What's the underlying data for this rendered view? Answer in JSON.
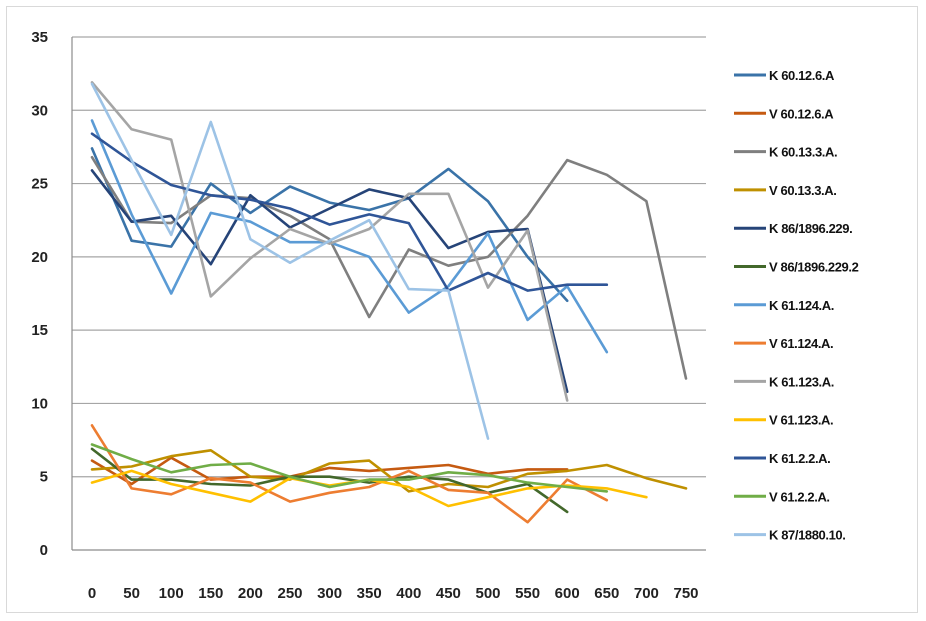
{
  "chart_data": {
    "type": "line",
    "title": "",
    "xlabel": "",
    "ylabel": "",
    "x": [
      0,
      50,
      100,
      150,
      200,
      250,
      300,
      350,
      400,
      450,
      500,
      550,
      600,
      650,
      700,
      750
    ],
    "x_ticks": [
      "0",
      "50",
      "100",
      "150",
      "200",
      "250",
      "300",
      "350",
      "400",
      "450",
      "500",
      "550",
      "600",
      "650",
      "700",
      "750"
    ],
    "ylim": [
      0,
      35
    ],
    "y_ticks": [
      "0",
      "5",
      "10",
      "15",
      "20",
      "25",
      "30",
      "35"
    ],
    "grid": true,
    "legend": "right",
    "series": [
      {
        "name": "K 60.12.6.A",
        "color": "#3a73a8",
        "values": [
          27.4,
          21.1,
          20.7,
          25.0,
          23.0,
          24.8,
          23.7,
          23.2,
          24.0,
          26.0,
          23.8,
          20.0,
          17.0,
          null,
          null,
          null
        ]
      },
      {
        "name": "V 60.12.6.A",
        "color": "#c55a11",
        "values": [
          6.1,
          4.5,
          6.3,
          4.8,
          5.0,
          5.0,
          5.6,
          5.4,
          5.6,
          5.8,
          5.2,
          5.5,
          5.5,
          null,
          null,
          null
        ]
      },
      {
        "name": "K 60.13.3.A.",
        "color": "#7f7f7f",
        "values": [
          26.8,
          22.4,
          22.3,
          24.2,
          24.0,
          22.8,
          21.2,
          15.9,
          20.5,
          19.4,
          20.0,
          22.8,
          26.6,
          25.6,
          23.8,
          11.7
        ]
      },
      {
        "name": "V 60.13.3.A.",
        "color": "#bf9000",
        "values": [
          5.5,
          5.7,
          6.4,
          6.8,
          5.0,
          4.8,
          5.9,
          6.1,
          4.0,
          4.5,
          4.3,
          5.2,
          5.4,
          5.8,
          4.9,
          4.2
        ]
      },
      {
        "name": "K 86/1896.229.",
        "color": "#264478",
        "values": [
          25.9,
          22.4,
          22.8,
          19.5,
          24.2,
          22.0,
          23.3,
          24.6,
          24.0,
          20.6,
          21.7,
          21.9,
          10.8,
          null,
          null,
          null
        ]
      },
      {
        "name": "V 86/1896.229.2",
        "color": "#43682b",
        "values": [
          6.9,
          4.8,
          4.8,
          4.5,
          4.4,
          5.0,
          5.0,
          4.6,
          5.0,
          4.8,
          3.9,
          4.5,
          2.6,
          null,
          null,
          null
        ]
      },
      {
        "name": "K 61.124.A.",
        "color": "#5b9bd5",
        "values": [
          29.3,
          22.9,
          17.5,
          23.0,
          22.4,
          21.0,
          21.0,
          20.0,
          16.2,
          18.0,
          21.6,
          15.7,
          18.0,
          13.5,
          null,
          null
        ]
      },
      {
        "name": "V 61.124.A.",
        "color": "#ed7d31",
        "values": [
          8.5,
          4.2,
          3.8,
          4.9,
          4.6,
          3.3,
          3.9,
          4.3,
          5.4,
          4.1,
          3.9,
          1.9,
          4.8,
          3.4,
          null,
          null
        ]
      },
      {
        "name": "K 61.123.A.",
        "color": "#a5a5a5",
        "values": [
          31.9,
          28.7,
          28.0,
          17.3,
          19.9,
          21.9,
          20.9,
          21.9,
          24.3,
          24.3,
          17.9,
          21.8,
          10.2,
          null,
          null,
          null
        ]
      },
      {
        "name": "V 61.123.A.",
        "color": "#ffc000",
        "values": [
          4.6,
          5.4,
          4.5,
          3.9,
          3.3,
          4.9,
          4.4,
          4.8,
          4.3,
          3.0,
          3.6,
          4.2,
          4.4,
          4.2,
          3.6,
          null
        ]
      },
      {
        "name": "K 61.2.2.A.",
        "color": "#2f5597",
        "values": [
          28.4,
          26.5,
          24.9,
          24.2,
          23.9,
          23.3,
          22.2,
          22.9,
          22.3,
          17.7,
          18.9,
          17.7,
          18.1,
          18.1,
          null,
          null
        ]
      },
      {
        "name": "V 61.2.2.A.",
        "color": "#70ad47",
        "values": [
          7.2,
          6.2,
          5.3,
          5.8,
          5.9,
          5.0,
          4.3,
          4.8,
          4.8,
          5.3,
          5.1,
          4.6,
          4.3,
          4.0,
          null,
          null
        ]
      },
      {
        "name": "K 87/1880.10.",
        "color": "#9dc3e6",
        "values": [
          31.8,
          26.6,
          21.5,
          29.2,
          21.2,
          19.6,
          21.1,
          22.5,
          17.8,
          17.7,
          7.6,
          null,
          null,
          null,
          null,
          null
        ]
      }
    ]
  }
}
